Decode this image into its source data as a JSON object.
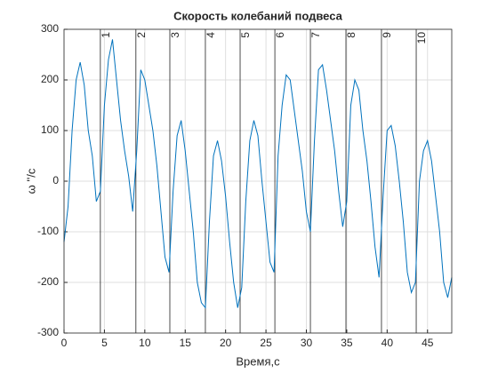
{
  "chart_data": {
    "type": "line",
    "title": "Скорость колебаний подвеса",
    "x_label": "Время,с",
    "y_label": "ω ''/c",
    "x": [
      0,
      0.5,
      1,
      1.5,
      2,
      2.5,
      3,
      3.5,
      4,
      4.5,
      5,
      5.5,
      6,
      6.5,
      7,
      7.5,
      8,
      8.5,
      9,
      9.5,
      10,
      10.5,
      11,
      11.5,
      12,
      12.5,
      13,
      13.5,
      14,
      14.5,
      15,
      15.5,
      16,
      16.5,
      17,
      17.5,
      18,
      18.5,
      19,
      19.5,
      20,
      20.5,
      21,
      21.5,
      22,
      22.5,
      23,
      23.5,
      24,
      24.5,
      25,
      25.5,
      26,
      26.5,
      27,
      27.5,
      28,
      28.5,
      29,
      29.5,
      30,
      30.5,
      31,
      31.5,
      32,
      32.5,
      33,
      33.5,
      34,
      34.5,
      35,
      35.5,
      36,
      36.5,
      37,
      37.5,
      38,
      38.5,
      39,
      39.5,
      40,
      40.5,
      41,
      41.5,
      42,
      42.5,
      43,
      43.5,
      44,
      44.5,
      45,
      45.5,
      46,
      46.5,
      47,
      47.5,
      48
    ],
    "series": [
      {
        "color": "#0072bd",
        "values": [
          -120,
          -50,
          100,
          200,
          235,
          190,
          100,
          50,
          -40,
          -20,
          150,
          240,
          280,
          200,
          120,
          60,
          10,
          -60,
          60,
          220,
          200,
          150,
          100,
          30,
          -60,
          -150,
          -180,
          -20,
          90,
          120,
          60,
          -20,
          -100,
          -200,
          -240,
          -250,
          -80,
          50,
          80,
          40,
          -30,
          -120,
          -200,
          -250,
          -210,
          -40,
          80,
          120,
          90,
          0,
          -80,
          -160,
          -180,
          50,
          150,
          210,
          200,
          140,
          80,
          20,
          -60,
          -100,
          80,
          220,
          230,
          180,
          120,
          60,
          -20,
          -90,
          -40,
          150,
          200,
          180,
          100,
          40,
          -40,
          -130,
          -190,
          -30,
          100,
          110,
          70,
          0,
          -80,
          -180,
          -220,
          -200,
          0,
          60,
          80,
          40,
          -30,
          -100,
          -200,
          -230,
          -190
        ]
      }
    ],
    "annotations": [
      {
        "x": 4.5,
        "label": "1"
      },
      {
        "x": 8.9,
        "label": "2"
      },
      {
        "x": 13.1,
        "label": "3"
      },
      {
        "x": 17.5,
        "label": "4"
      },
      {
        "x": 21.8,
        "label": "5"
      },
      {
        "x": 26.1,
        "label": "6"
      },
      {
        "x": 30.5,
        "label": "7"
      },
      {
        "x": 34.9,
        "label": "8"
      },
      {
        "x": 39.3,
        "label": "9"
      },
      {
        "x": 43.6,
        "label": "10"
      }
    ],
    "xlim": [
      0,
      48
    ],
    "xticks": [
      0,
      5,
      10,
      15,
      20,
      25,
      30,
      35,
      40,
      45
    ],
    "ylim": [
      -300,
      300
    ],
    "yticks": [
      -300,
      -200,
      -100,
      0,
      100,
      200,
      300
    ],
    "grid": true
  }
}
